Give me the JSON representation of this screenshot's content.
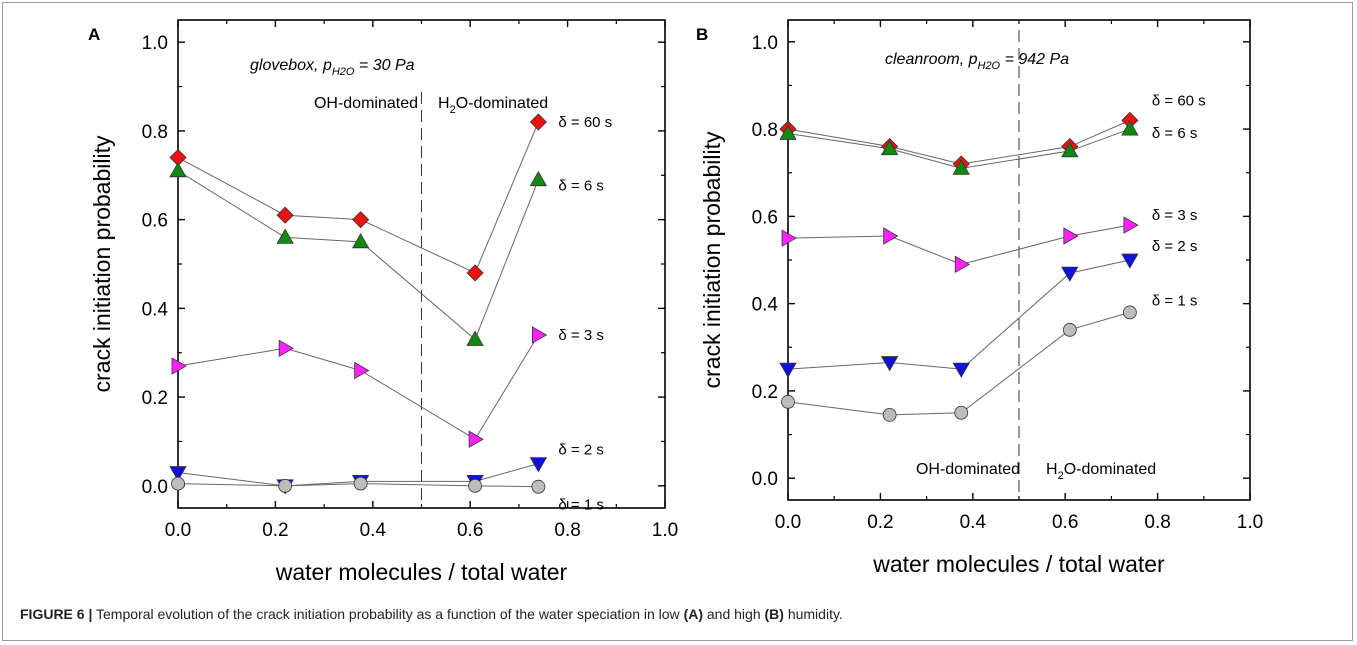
{
  "figure": {
    "caption_lead": "FIGURE 6 |",
    "caption_part1": " Temporal evolution of the crack initiation probability as a function of the water speciation in low ",
    "caption_a": "(A)",
    "caption_part2": " and high ",
    "caption_b": "(B)",
    "caption_part3": " humidity."
  },
  "chart_data": [
    {
      "type": "line",
      "panel_label": "A",
      "condition_main": "glovebox,  p",
      "condition_sub": "H2O",
      "condition_value": " = 30 Pa",
      "xlabel": "water molecules / total water",
      "ylabel": "crack initiation probability",
      "xlim": [
        0.0,
        1.0
      ],
      "ylim": [
        -0.05,
        1.05
      ],
      "xticks": [
        "0.0",
        "0.2",
        "0.4",
        "0.6",
        "0.8",
        "1.0"
      ],
      "xtick_values": [
        0.0,
        0.2,
        0.4,
        0.6,
        0.8,
        1.0
      ],
      "yticks": [
        "0.0",
        "0.2",
        "0.4",
        "0.6",
        "0.8",
        "1.0"
      ],
      "ytick_values": [
        0.0,
        0.2,
        0.4,
        0.6,
        0.8,
        1.0
      ],
      "divider_x": 0.5,
      "region_left": "OH-dominated",
      "region_right_h": "H",
      "region_right_sub": "2",
      "region_right_rest": "O-dominated",
      "region_label_position": "top",
      "x": [
        0.0,
        0.22,
        0.375,
        0.61,
        0.74
      ],
      "series": [
        {
          "name": "δ = 60 s",
          "marker": "diamond",
          "color": "#ee1111",
          "values": [
            0.74,
            0.61,
            0.6,
            0.48,
            0.82
          ]
        },
        {
          "name": "δ = 6 s",
          "marker": "triangle-up",
          "color": "#118811",
          "values": [
            0.71,
            0.56,
            0.55,
            0.33,
            0.69
          ]
        },
        {
          "name": "δ = 3 s",
          "marker": "triangle-right",
          "color": "#ff22ff",
          "values": [
            0.27,
            0.31,
            0.26,
            0.105,
            0.34
          ]
        },
        {
          "name": "δ = 2 s",
          "marker": "triangle-down",
          "color": "#1111dd",
          "values": [
            0.03,
            0.0,
            0.01,
            0.01,
            0.05
          ]
        },
        {
          "name": "δ = 1 s",
          "marker": "circle",
          "color": "#bdbdbd",
          "values": [
            0.005,
            0.0,
            0.005,
            0.0,
            -0.002
          ]
        }
      ]
    },
    {
      "type": "line",
      "panel_label": "B",
      "condition_main": "cleanroom, p",
      "condition_sub": "H2O",
      "condition_value": " = 942 Pa",
      "xlabel": "water molecules / total water",
      "ylabel": "crack initiation probability",
      "xlim": [
        0.0,
        1.0
      ],
      "ylim": [
        -0.05,
        1.05
      ],
      "xticks": [
        "0.0",
        "0.2",
        "0.4",
        "0.6",
        "0.8",
        "1.0"
      ],
      "xtick_values": [
        0.0,
        0.2,
        0.4,
        0.6,
        0.8,
        1.0
      ],
      "yticks": [
        "0.0",
        "0.2",
        "0.4",
        "0.6",
        "0.8",
        "1.0"
      ],
      "ytick_values": [
        0.0,
        0.2,
        0.4,
        0.6,
        0.8,
        1.0
      ],
      "divider_x": 0.5,
      "region_left": "OH-dominated",
      "region_right_h": "H",
      "region_right_sub": "2",
      "region_right_rest": "O-dominated",
      "region_label_position": "bottom",
      "x": [
        0.0,
        0.22,
        0.375,
        0.61,
        0.74
      ],
      "series": [
        {
          "name": "δ = 60 s",
          "marker": "diamond",
          "color": "#ee1111",
          "values": [
            0.8,
            0.76,
            0.72,
            0.76,
            0.82
          ]
        },
        {
          "name": "δ = 6 s",
          "marker": "triangle-up",
          "color": "#118811",
          "values": [
            0.79,
            0.755,
            0.71,
            0.75,
            0.8
          ]
        },
        {
          "name": "δ = 3 s",
          "marker": "triangle-right",
          "color": "#ff22ff",
          "values": [
            0.55,
            0.555,
            0.49,
            0.555,
            0.58
          ]
        },
        {
          "name": "δ = 2 s",
          "marker": "triangle-down",
          "color": "#1111dd",
          "values": [
            0.25,
            0.265,
            0.25,
            0.47,
            0.5
          ]
        },
        {
          "name": "δ = 1 s",
          "marker": "circle",
          "color": "#bdbdbd",
          "values": [
            0.175,
            0.145,
            0.15,
            0.34,
            0.38
          ]
        }
      ]
    }
  ]
}
